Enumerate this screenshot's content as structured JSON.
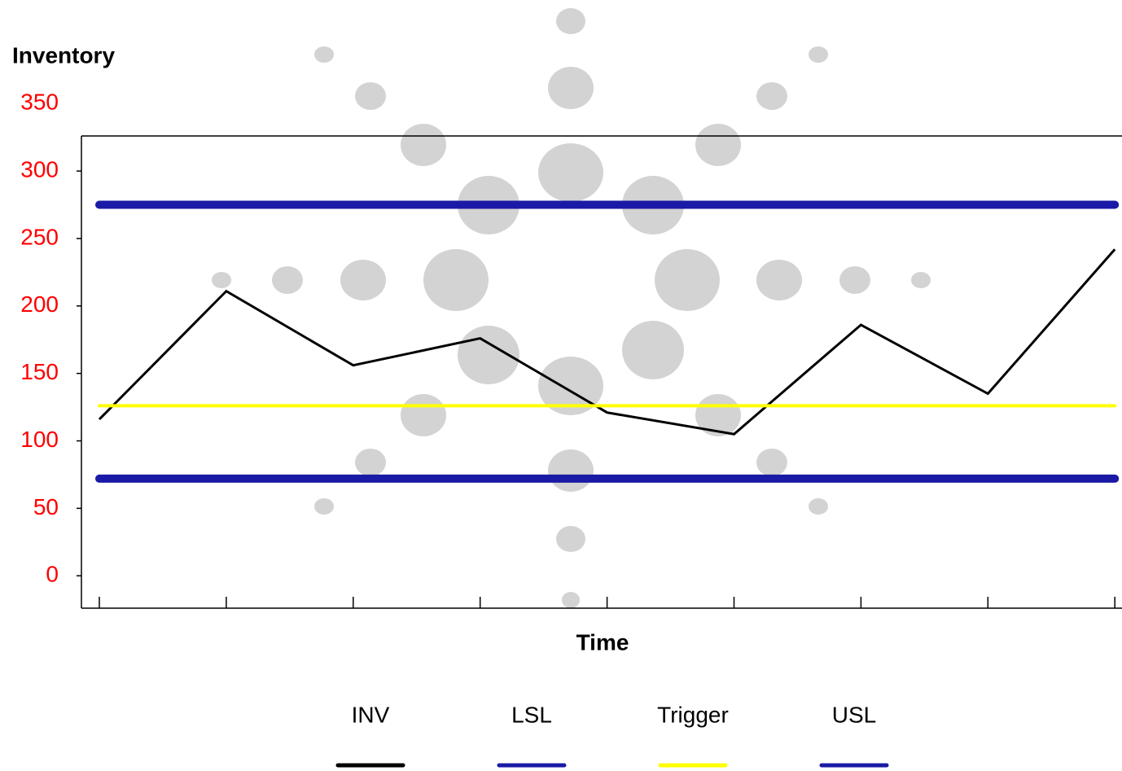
{
  "chart_data": {
    "type": "line",
    "y_label": "Inventory",
    "x_label": "Time",
    "categories": [
      null,
      null,
      null,
      null,
      null,
      null,
      null,
      null,
      null
    ],
    "series": [
      {
        "name": "INV",
        "color": "#000000",
        "values": [
          116,
          211,
          156,
          176,
          121,
          105,
          186,
          135,
          242
        ]
      },
      {
        "name": "LSL",
        "color": "#1a1aa6",
        "values": [
          72,
          72,
          72,
          72,
          72,
          72,
          72,
          72,
          72
        ]
      },
      {
        "name": "Trigger",
        "color": "#ffff00",
        "values": [
          126,
          126,
          126,
          126,
          126,
          126,
          126,
          126,
          126
        ]
      },
      {
        "name": "USL",
        "color": "#1a1aa6",
        "values": [
          275,
          275,
          275,
          275,
          275,
          275,
          275,
          275,
          275
        ]
      }
    ],
    "ylim": [
      -24,
      326
    ],
    "yticks": [
      0,
      50,
      100,
      150,
      200,
      250,
      300,
      350
    ],
    "tick_label_color": "#ff0000"
  }
}
